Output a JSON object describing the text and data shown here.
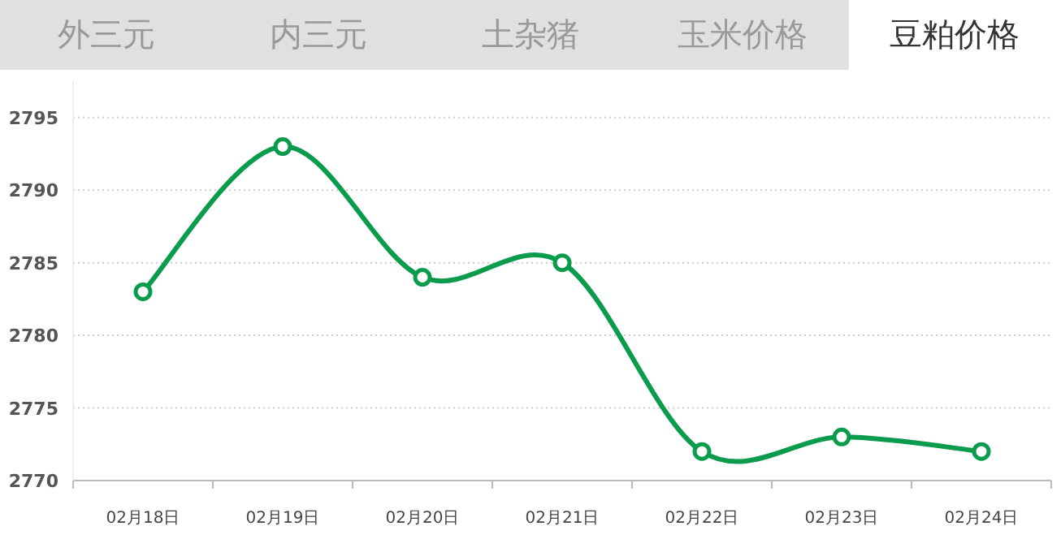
{
  "chart_data": {
    "type": "line",
    "annotations": [
      "外三元",
      "内三元",
      "土杂猪",
      "玉米价格",
      "豆粕价格"
    ],
    "categories": [
      "02月18日",
      "02月19日",
      "02月20日",
      "02月21日",
      "02月22日",
      "02月23日",
      "02月24日"
    ],
    "series": [
      {
        "color": "#0a9b4c",
        "values": [
          2783,
          2793,
          2784,
          2785,
          2772,
          2773,
          2772
        ]
      }
    ],
    "ylim": [
      2770,
      2797.5
    ],
    "yticks": [
      2770,
      2775,
      2780,
      2785,
      2790,
      2795
    ],
    "grid": "y",
    "marker": "circle",
    "line_style": "solid"
  }
}
